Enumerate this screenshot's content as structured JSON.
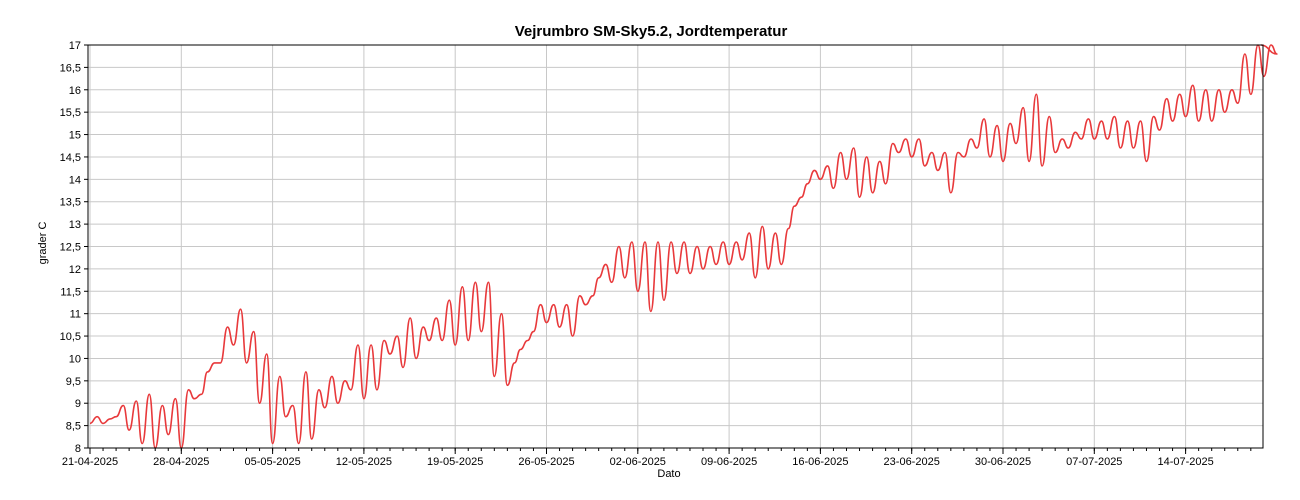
{
  "chart_data": {
    "type": "line",
    "title": "Vejrumbro SM-Sky5.2, Jordtemperatur",
    "xlabel": "Dato",
    "ylabel": "grader C",
    "ylim": [
      8,
      17
    ],
    "grid": true,
    "colors": {
      "series": "#e8393b",
      "grid": "#c8c8c8",
      "axis": "#000000"
    },
    "y_ticks": [
      "8",
      "8,5",
      "9",
      "9,5",
      "10",
      "10,5",
      "11",
      "11,5",
      "12",
      "12,5",
      "13",
      "13,5",
      "14",
      "14,5",
      "15",
      "15,5",
      "16",
      "16,5",
      "17"
    ],
    "x_ticks": [
      "21-04-2025",
      "28-04-2025",
      "05-05-2025",
      "12-05-2025",
      "19-05-2025",
      "26-05-2025",
      "02-06-2025",
      "09-06-2025",
      "16-06-2025",
      "23-06-2025",
      "30-06-2025",
      "07-07-2025",
      "14-07-2025"
    ],
    "xlim": [
      "2025-04-21",
      "2025-07-21"
    ],
    "series": [
      {
        "x": [
          "2025-04-21",
          "2025-04-22",
          "2025-04-23",
          "2025-04-24",
          "2025-04-25",
          "2025-04-26",
          "2025-04-27",
          "2025-04-28",
          "2025-04-29",
          "2025-04-30",
          "2025-05-01",
          "2025-05-02",
          "2025-05-03",
          "2025-05-04",
          "2025-05-05",
          "2025-05-06",
          "2025-05-07",
          "2025-05-08",
          "2025-05-09",
          "2025-05-10",
          "2025-05-11",
          "2025-05-12",
          "2025-05-13",
          "2025-05-14",
          "2025-05-15",
          "2025-05-16",
          "2025-05-17",
          "2025-05-18",
          "2025-05-19",
          "2025-05-20",
          "2025-05-21",
          "2025-05-22",
          "2025-05-23",
          "2025-05-24",
          "2025-05-25",
          "2025-05-26",
          "2025-05-27",
          "2025-05-28",
          "2025-05-29",
          "2025-05-30",
          "2025-05-31",
          "2025-06-01",
          "2025-06-02",
          "2025-06-03",
          "2025-06-04",
          "2025-06-05",
          "2025-06-06",
          "2025-06-07",
          "2025-06-08",
          "2025-06-09",
          "2025-06-10",
          "2025-06-11",
          "2025-06-12",
          "2025-06-13",
          "2025-06-14",
          "2025-06-15",
          "2025-06-16",
          "2025-06-17",
          "2025-06-18",
          "2025-06-19",
          "2025-06-20",
          "2025-06-21",
          "2025-06-22",
          "2025-06-23",
          "2025-06-24",
          "2025-06-25",
          "2025-06-26",
          "2025-06-27",
          "2025-06-28",
          "2025-06-29",
          "2025-06-30",
          "2025-07-01",
          "2025-07-02",
          "2025-07-03",
          "2025-07-04",
          "2025-07-05",
          "2025-07-06",
          "2025-07-07",
          "2025-07-08",
          "2025-07-09",
          "2025-07-10",
          "2025-07-11",
          "2025-07-12",
          "2025-07-13",
          "2025-07-14",
          "2025-07-15",
          "2025-07-16",
          "2025-07-17",
          "2025-07-18",
          "2025-07-19",
          "2025-07-20",
          "2025-07-21"
        ],
        "min": [
          8.55,
          8.55,
          8.7,
          8.4,
          8.1,
          8.0,
          8.3,
          8.0,
          9.1,
          9.7,
          9.9,
          10.3,
          9.9,
          9.0,
          8.1,
          8.7,
          8.1,
          8.2,
          8.9,
          9.0,
          9.3,
          9.1,
          9.3,
          10.1,
          9.8,
          10.0,
          10.4,
          10.4,
          10.3,
          10.4,
          10.6,
          9.6,
          9.4,
          10.2,
          10.6,
          10.8,
          10.7,
          10.5,
          11.2,
          11.8,
          11.7,
          11.8,
          11.5,
          11.05,
          11.3,
          11.9,
          11.9,
          12.0,
          12.1,
          12.1,
          12.2,
          11.8,
          12.0,
          12.1,
          13.4,
          13.9,
          14.0,
          13.8,
          14.0,
          13.6,
          13.7,
          13.9,
          14.6,
          14.5,
          14.3,
          14.2,
          13.7,
          14.5,
          14.7,
          14.5,
          14.4,
          14.8,
          14.4,
          14.3,
          14.6,
          14.7,
          14.9,
          14.9,
          14.9,
          14.7,
          14.7,
          14.4,
          15.1,
          15.3,
          15.4,
          15.3,
          15.3,
          15.5,
          15.7,
          15.9,
          16.3,
          16.8
        ],
        "max": [
          8.7,
          8.65,
          8.95,
          9.05,
          9.2,
          8.95,
          9.1,
          9.3,
          9.2,
          9.9,
          10.7,
          11.1,
          10.6,
          10.1,
          9.6,
          8.95,
          9.7,
          9.3,
          9.6,
          9.5,
          10.3,
          10.3,
          10.4,
          10.5,
          10.9,
          10.7,
          10.9,
          11.3,
          11.6,
          11.7,
          11.7,
          11.0,
          9.9,
          10.4,
          11.2,
          11.2,
          11.2,
          11.4,
          11.4,
          12.1,
          12.5,
          12.6,
          12.6,
          12.6,
          12.6,
          12.6,
          12.5,
          12.5,
          12.6,
          12.6,
          12.8,
          12.95,
          12.8,
          12.9,
          13.6,
          14.2,
          14.3,
          14.6,
          14.7,
          14.5,
          14.4,
          14.8,
          14.9,
          14.9,
          14.6,
          14.6,
          14.6,
          14.9,
          15.35,
          15.2,
          15.25,
          15.6,
          15.9,
          15.4,
          14.9,
          15.05,
          15.35,
          15.3,
          15.4,
          15.3,
          15.3,
          15.4,
          15.8,
          15.9,
          16.1,
          16.0,
          16.0,
          16.0,
          16.8,
          17.0,
          17.0,
          17.0
        ]
      }
    ]
  }
}
